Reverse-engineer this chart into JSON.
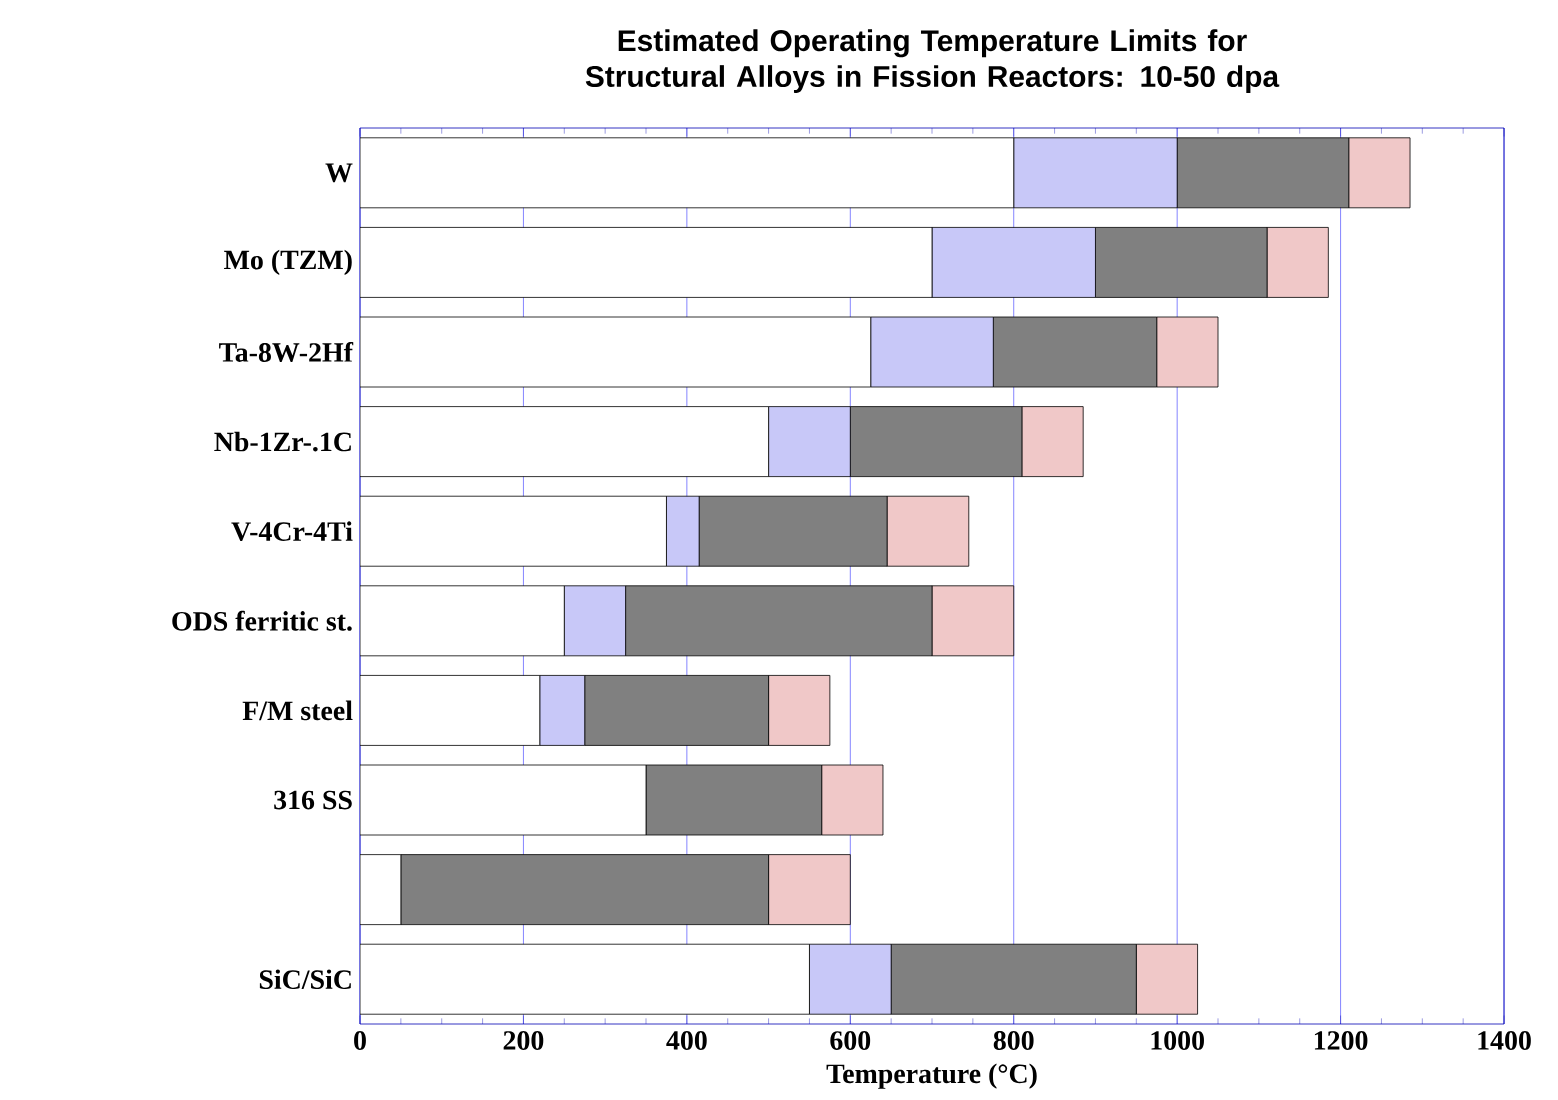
{
  "chart_data": {
    "type": "bar",
    "orientation": "horizontal",
    "stacked": true,
    "title": "Estimated Operating Temperature Limits for Structural Alloys in Fission Reactors: 10-50 dpa",
    "xlabel": "Temperature (°C)",
    "categories": [
      "W",
      "Mo (TZM)",
      "Ta-8W-2Hf",
      "Nb-1Zr-.1C",
      "V-4Cr-4Ti",
      "ODS ferritic st.",
      "F/M steel",
      "316 SS",
      null,
      "SiC/SiC"
    ],
    "series": [
      {
        "color": "#ffffff",
        "values": [
          800,
          700,
          625,
          500,
          375,
          250,
          220,
          350,
          50,
          550
        ]
      },
      {
        "color": "#c8c8f8",
        "values": [
          200,
          200,
          150,
          100,
          40,
          75,
          55,
          0,
          0,
          100
        ]
      },
      {
        "color": "#808080",
        "values": [
          210,
          210,
          200,
          210,
          230,
          375,
          225,
          215,
          450,
          300
        ]
      },
      {
        "color": "#f0c8c8",
        "values": [
          75,
          75,
          75,
          75,
          100,
          100,
          75,
          75,
          100,
          75
        ]
      }
    ],
    "xlim": [
      0,
      1400
    ],
    "xticks": [
      0,
      200,
      400,
      600,
      800,
      1000,
      1200,
      1400
    ],
    "grid": "x"
  }
}
